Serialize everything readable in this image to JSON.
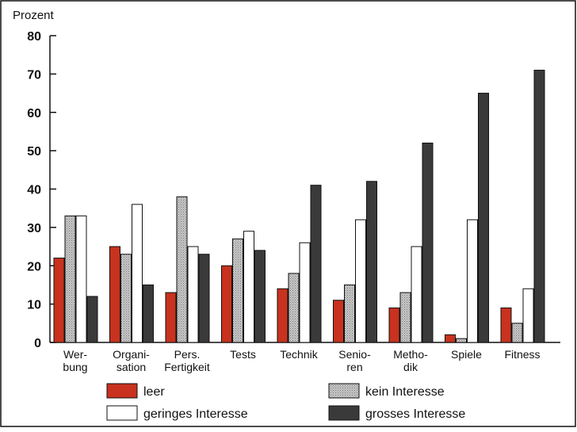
{
  "chart_data": {
    "type": "bar",
    "ylabel": "Prozent",
    "ylim": [
      0,
      80
    ],
    "yticks": [
      "0",
      "10",
      "20",
      "30",
      "40",
      "50",
      "60",
      "70",
      "80"
    ],
    "categories": [
      [
        "Wer-",
        "bung"
      ],
      [
        "Organi-",
        "sation"
      ],
      [
        "Pers.",
        "Fertigkeit"
      ],
      [
        "Tests"
      ],
      [
        "Technik"
      ],
      [
        "Senio-",
        "ren"
      ],
      [
        "Metho-",
        "dik"
      ],
      [
        "Spiele"
      ],
      [
        "Fitness"
      ]
    ],
    "series": [
      {
        "name": "leer",
        "color": "#c8321e",
        "pattern": "solid",
        "values": [
          22,
          25,
          13,
          20,
          14,
          11,
          9,
          2,
          9
        ]
      },
      {
        "name": "kein Interesse",
        "color": "#b4b4b4",
        "pattern": "dotted",
        "values": [
          33,
          23,
          38,
          27,
          18,
          15,
          13,
          1,
          5
        ]
      },
      {
        "name": "geringes Interesse",
        "color": "#ffffff",
        "pattern": "solid",
        "values": [
          33,
          36,
          25,
          29,
          26,
          32,
          25,
          32,
          14
        ]
      },
      {
        "name": "grosses Interesse",
        "color": "#3a3a3a",
        "pattern": "solid",
        "values": [
          12,
          15,
          23,
          24,
          41,
          42,
          52,
          65,
          71
        ]
      }
    ],
    "grid": false,
    "legend_position": "bottom"
  }
}
